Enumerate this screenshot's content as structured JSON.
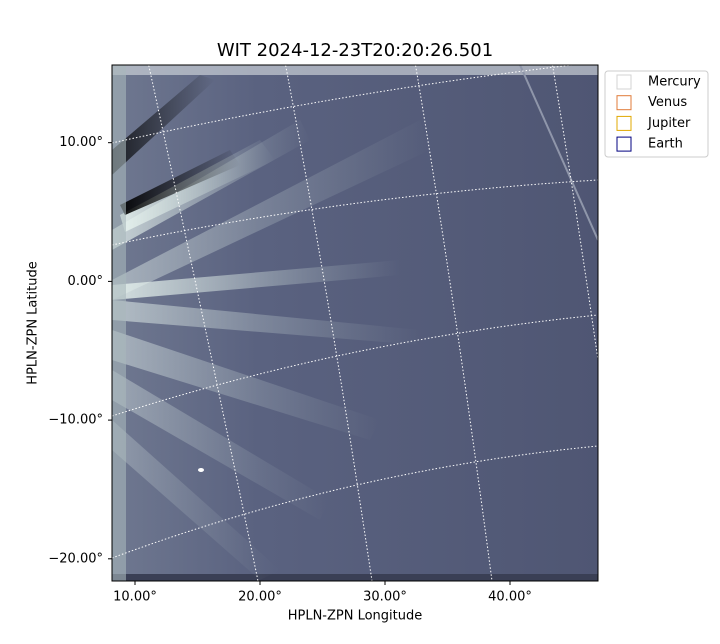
{
  "chart_data": {
    "type": "image",
    "title": "WIT 2024-12-23T20:20:26.501",
    "x_label": "HPLN-ZPN Longitude",
    "y_label": "HPLN-ZPN Latitude",
    "xlim": [
      8.16,
      47.04
    ],
    "ylim": [
      -21.6,
      15.6
    ],
    "xticks": [
      {
        "value": 10,
        "label": "10.00°"
      },
      {
        "value": 20,
        "label": "20.00°"
      },
      {
        "value": 30,
        "label": "30.00°"
      },
      {
        "value": 40,
        "label": "40.00°"
      }
    ],
    "yticks": [
      {
        "value": 10,
        "label": "10.00°"
      },
      {
        "value": 0,
        "label": "0.00°"
      },
      {
        "value": -10,
        "label": "−10.00°"
      },
      {
        "value": -20,
        "label": "−20.00°"
      }
    ],
    "legend": [
      {
        "name": "Mercury",
        "color": "#d3d3d3"
      },
      {
        "name": "Venus",
        "color": "#e07b39"
      },
      {
        "name": "Jupiter",
        "color": "#e0a800"
      },
      {
        "name": "Earth",
        "color": "#000080"
      }
    ]
  }
}
